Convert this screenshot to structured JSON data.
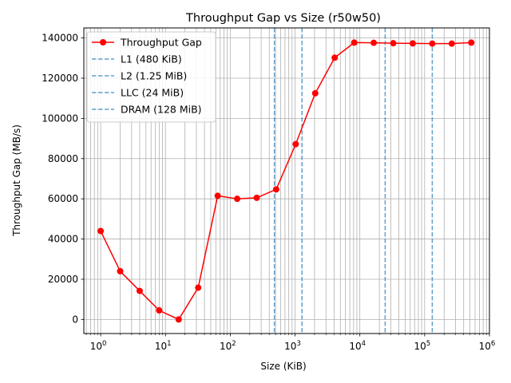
{
  "chart_data": {
    "type": "line",
    "title": "Throughput Gap vs Size (r50w50)",
    "xlabel": "Size (KiB)",
    "ylabel": "Throughput Gap (MB/s)",
    "xscale": "log",
    "xlim": [
      0.55,
      1000000
    ],
    "ylim": [
      -7000,
      145000
    ],
    "grid": "both-major-minor",
    "legend": "top-left",
    "xticks": [
      {
        "value": 1,
        "base": "10",
        "exp": "0"
      },
      {
        "value": 10,
        "base": "10",
        "exp": "1"
      },
      {
        "value": 100,
        "base": "10",
        "exp": "2"
      },
      {
        "value": 1000,
        "base": "10",
        "exp": "3"
      },
      {
        "value": 10000,
        "base": "10",
        "exp": "4"
      },
      {
        "value": 100000,
        "base": "10",
        "exp": "5"
      },
      {
        "value": 1000000,
        "base": "10",
        "exp": "6"
      }
    ],
    "yticks": [
      {
        "value": 0,
        "label": "0"
      },
      {
        "value": 20000,
        "label": "20000"
      },
      {
        "value": 40000,
        "label": "40000"
      },
      {
        "value": 60000,
        "label": "60000"
      },
      {
        "value": 80000,
        "label": "80000"
      },
      {
        "value": 100000,
        "label": "100000"
      },
      {
        "value": 120000,
        "label": "120000"
      },
      {
        "value": 140000,
        "label": "140000"
      }
    ],
    "series": [
      {
        "name": "Throughput Gap",
        "color": "#ff0000",
        "x": [
          1,
          2,
          4,
          8,
          16,
          32,
          64,
          128,
          256,
          512,
          1024,
          2048,
          4096,
          8192,
          16384,
          32768,
          65536,
          131072,
          262144,
          524288
        ],
        "y": [
          44000,
          24000,
          14200,
          4500,
          0,
          15800,
          61500,
          60000,
          60500,
          64700,
          87200,
          112500,
          130200,
          137700,
          137600,
          137400,
          137300,
          137200,
          137200,
          137700
        ]
      }
    ],
    "vlines": [
      {
        "name": "L1 (480 KiB)",
        "x": 480,
        "color": "#1f77b4"
      },
      {
        "name": "L2 (1.25 MiB)",
        "x": 1280,
        "color": "#1f77b4"
      },
      {
        "name": "LLC (24 MiB)",
        "x": 24576,
        "color": "#1f77b4"
      },
      {
        "name": "DRAM (128 MiB)",
        "x": 131072,
        "color": "#1f77b4"
      }
    ]
  }
}
